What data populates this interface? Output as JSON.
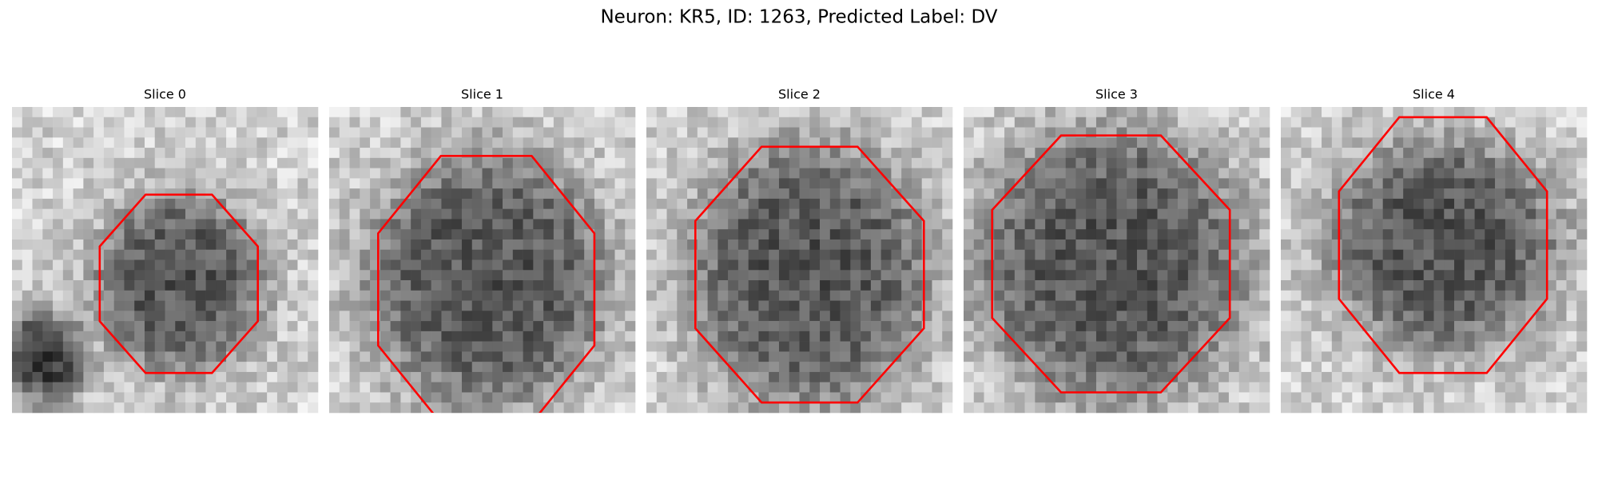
{
  "figure": {
    "title": "Neuron: KR5, ID: 1263, Predicted Label: DV",
    "panels": [
      {
        "title": "Slice 0"
      },
      {
        "title": "Slice 1"
      },
      {
        "title": "Slice 2"
      },
      {
        "title": "Slice 3"
      },
      {
        "title": "Slice 4"
      }
    ]
  }
}
